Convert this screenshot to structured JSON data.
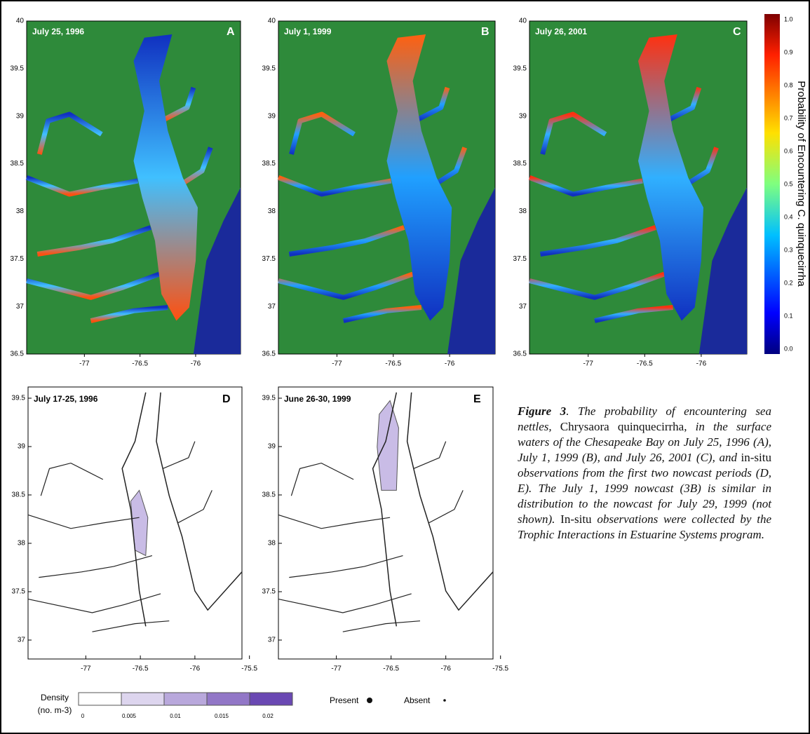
{
  "panels": [
    {
      "letter": "A",
      "date": "July 25, 1996",
      "yticks": [
        "40",
        "39.5",
        "39",
        "38.5",
        "38",
        "37.5",
        "37",
        "36.5"
      ],
      "xticks": [
        "-77",
        "-76.5",
        "-76"
      ]
    },
    {
      "letter": "B",
      "date": "July 1, 1999",
      "yticks": [
        "40",
        "39.5",
        "39",
        "38.5",
        "38",
        "37.5",
        "37",
        "36.5"
      ],
      "xticks": [
        "-77",
        "-76.5",
        "-76"
      ]
    },
    {
      "letter": "C",
      "date": "July 26, 2001",
      "yticks": [
        "40",
        "39.5",
        "39",
        "38.5",
        "38",
        "37.5",
        "37",
        "36.5"
      ],
      "xticks": [
        "-77",
        "-76.5",
        "-76"
      ]
    }
  ],
  "colorbar": {
    "label": "Probability of Encountering C. quinquecirrha",
    "ticks": [
      "1.0",
      "0.9",
      "0.8",
      "0.7",
      "0.6",
      "0.5",
      "0.4",
      "0.3",
      "0.2",
      "0.1",
      "0.0"
    ]
  },
  "lower_panels": [
    {
      "letter": "D",
      "date": "July 17-25, 1996",
      "yticks": [
        "39.5",
        "39",
        "38.5",
        "38",
        "37.5",
        "37"
      ],
      "xticks": [
        "-77",
        "-76.5",
        "-76",
        "-75.5"
      ]
    },
    {
      "letter": "E",
      "date": "June 26-30, 1999",
      "yticks": [
        "39.5",
        "39",
        "38.5",
        "38",
        "37.5",
        "37"
      ],
      "xticks": [
        "-77",
        "-76.5",
        "-76",
        "-75.5"
      ]
    }
  ],
  "density_legend": {
    "title": "Density",
    "unit": "(no. m-3)",
    "ticks": [
      "0",
      "0.005",
      "0.01",
      "0.015",
      "0.02"
    ]
  },
  "presence_legend": {
    "present": "Present",
    "absent": "Absent"
  },
  "caption": {
    "segments": [
      "Figure 3",
      ". The probability of encountering sea nettles, ",
      "Chrysaora quinquecirrha,",
      " in the surface waters of the Chesapeake Bay on July 25, 1996 (A), July 1, 1999 (B), and July 26, 2001 (C), and ",
      "in-situ",
      " observations from the first two nowcast periods (D, E). The July 1, 1999 nowcast (3B) is similar in distribution to the nowcast for July 29, 1999 (not shown). ",
      "In-situ",
      " observations were collected by the Trophic Interactions in Estuarine Systems program."
    ]
  }
}
